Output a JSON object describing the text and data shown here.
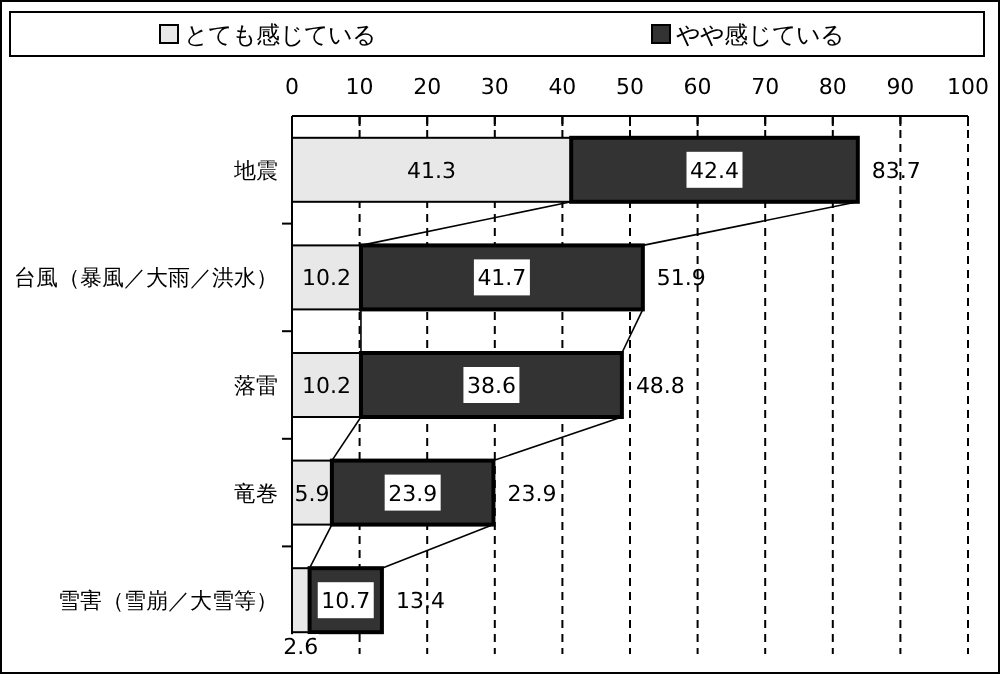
{
  "chart_data": {
    "type": "bar",
    "orientation": "horizontal",
    "stacked": true,
    "categories": [
      "地震",
      "台風（暴風／大雨／洪水）",
      "落雷",
      "竜巻",
      "雪害（雪崩／大雪等）"
    ],
    "series": [
      {
        "name": "とても感じている",
        "color": "#e8e8e8",
        "values": [
          41.3,
          10.2,
          10.2,
          5.9,
          2.6
        ]
      },
      {
        "name": "やや感じている",
        "color": "#333333",
        "values": [
          42.4,
          41.7,
          38.6,
          23.9,
          10.7
        ]
      }
    ],
    "xlim": [
      0,
      100
    ],
    "xticks": [
      0,
      10,
      20,
      30,
      40,
      50,
      60,
      70,
      80,
      90,
      100
    ],
    "grid": "x",
    "legend": "top",
    "data_labels": true,
    "annotations": [
      {
        "text": "83.7",
        "x": 83.7,
        "y": "地震"
      },
      {
        "text": "51.9",
        "x": 51.9,
        "y": "台風（暴風／大雨／洪水）"
      },
      {
        "text": "48.8",
        "x": 48.8,
        "y": "落雷"
      },
      {
        "text": "23.9",
        "x": 29.8,
        "y": "竜巻"
      },
      {
        "text": "13.4",
        "x": 13.3,
        "y": "雪害（雪崩／大雪等）"
      }
    ]
  }
}
